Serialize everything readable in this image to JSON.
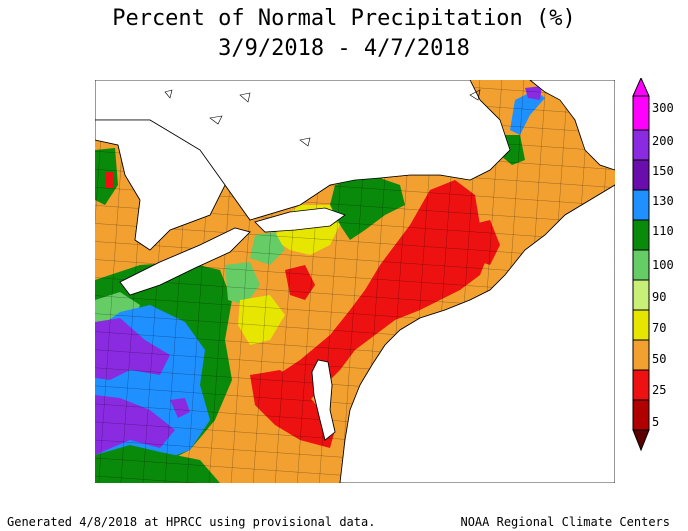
{
  "title": {
    "line1": "Percent of Normal Precipitation (%)",
    "line2": "3/9/2018 - 4/7/2018"
  },
  "legend": {
    "labels": [
      "300",
      "200",
      "150",
      "130",
      "110",
      "100",
      "90",
      "70",
      "50",
      "25",
      "5"
    ],
    "colors": [
      "#ff00ff",
      "#8a2be2",
      "#6a0dad",
      "#1e90ff",
      "#0a8a0a",
      "#66cc66",
      "#c8f078",
      "#e6e600",
      "#f2a030",
      "#ee1111",
      "#b00000",
      "#5a0000"
    ]
  },
  "footer": {
    "left": "Generated 4/8/2018 at HPRCC using provisional data.",
    "right": "NOAA Regional Climate Centers"
  }
}
